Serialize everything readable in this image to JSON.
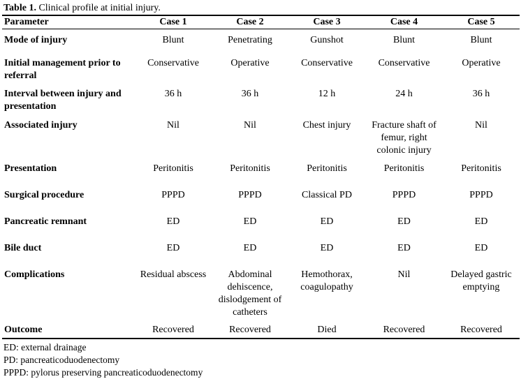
{
  "caption": {
    "label": "Table 1.",
    "text": "Clinical profile at initial injury."
  },
  "table": {
    "header": [
      "Parameter",
      "Case 1",
      "Case 2",
      "Case 3",
      "Case 4",
      "Case 5"
    ],
    "rows": [
      [
        "Mode of injury",
        "Blunt",
        "Penetrating",
        "Gunshot",
        "Blunt",
        "Blunt"
      ],
      [
        "Initial management prior to referral",
        "Conservative",
        "Operative",
        "Conservative",
        "Conservative",
        "Operative"
      ],
      [
        "Interval between injury and presentation",
        "36 h",
        "36 h",
        "12 h",
        "24 h",
        "36 h"
      ],
      [
        "Associated injury",
        "Nil",
        "Nil",
        "Chest injury",
        "Fracture shaft of femur, right colonic injury",
        "Nil"
      ],
      [
        "Presentation",
        "Peritonitis",
        "Peritonitis",
        "Peritonitis",
        "Peritonitis",
        "Peritonitis"
      ],
      [
        "Surgical procedure",
        "PPPD",
        "PPPD",
        "Classical PD",
        "PPPD",
        "PPPD"
      ],
      [
        "Pancreatic remnant",
        "ED",
        "ED",
        "ED",
        "ED",
        "ED"
      ],
      [
        "Bile duct",
        "ED",
        "ED",
        "ED",
        "ED",
        "ED"
      ],
      [
        "Complications",
        "Residual abscess",
        "Abdominal dehiscence, dislodgement of catheters",
        "Hemothorax, coagulopathy",
        "Nil",
        "Delayed gastric emptying"
      ],
      [
        "Outcome",
        "Recovered",
        "Recovered",
        "Died",
        "Recovered",
        "Recovered"
      ]
    ]
  },
  "footnotes": [
    "ED: external drainage",
    "PD: pancreaticoduodenectomy",
    "PPPD: pylorus preserving pancreaticoduodenectomy"
  ]
}
